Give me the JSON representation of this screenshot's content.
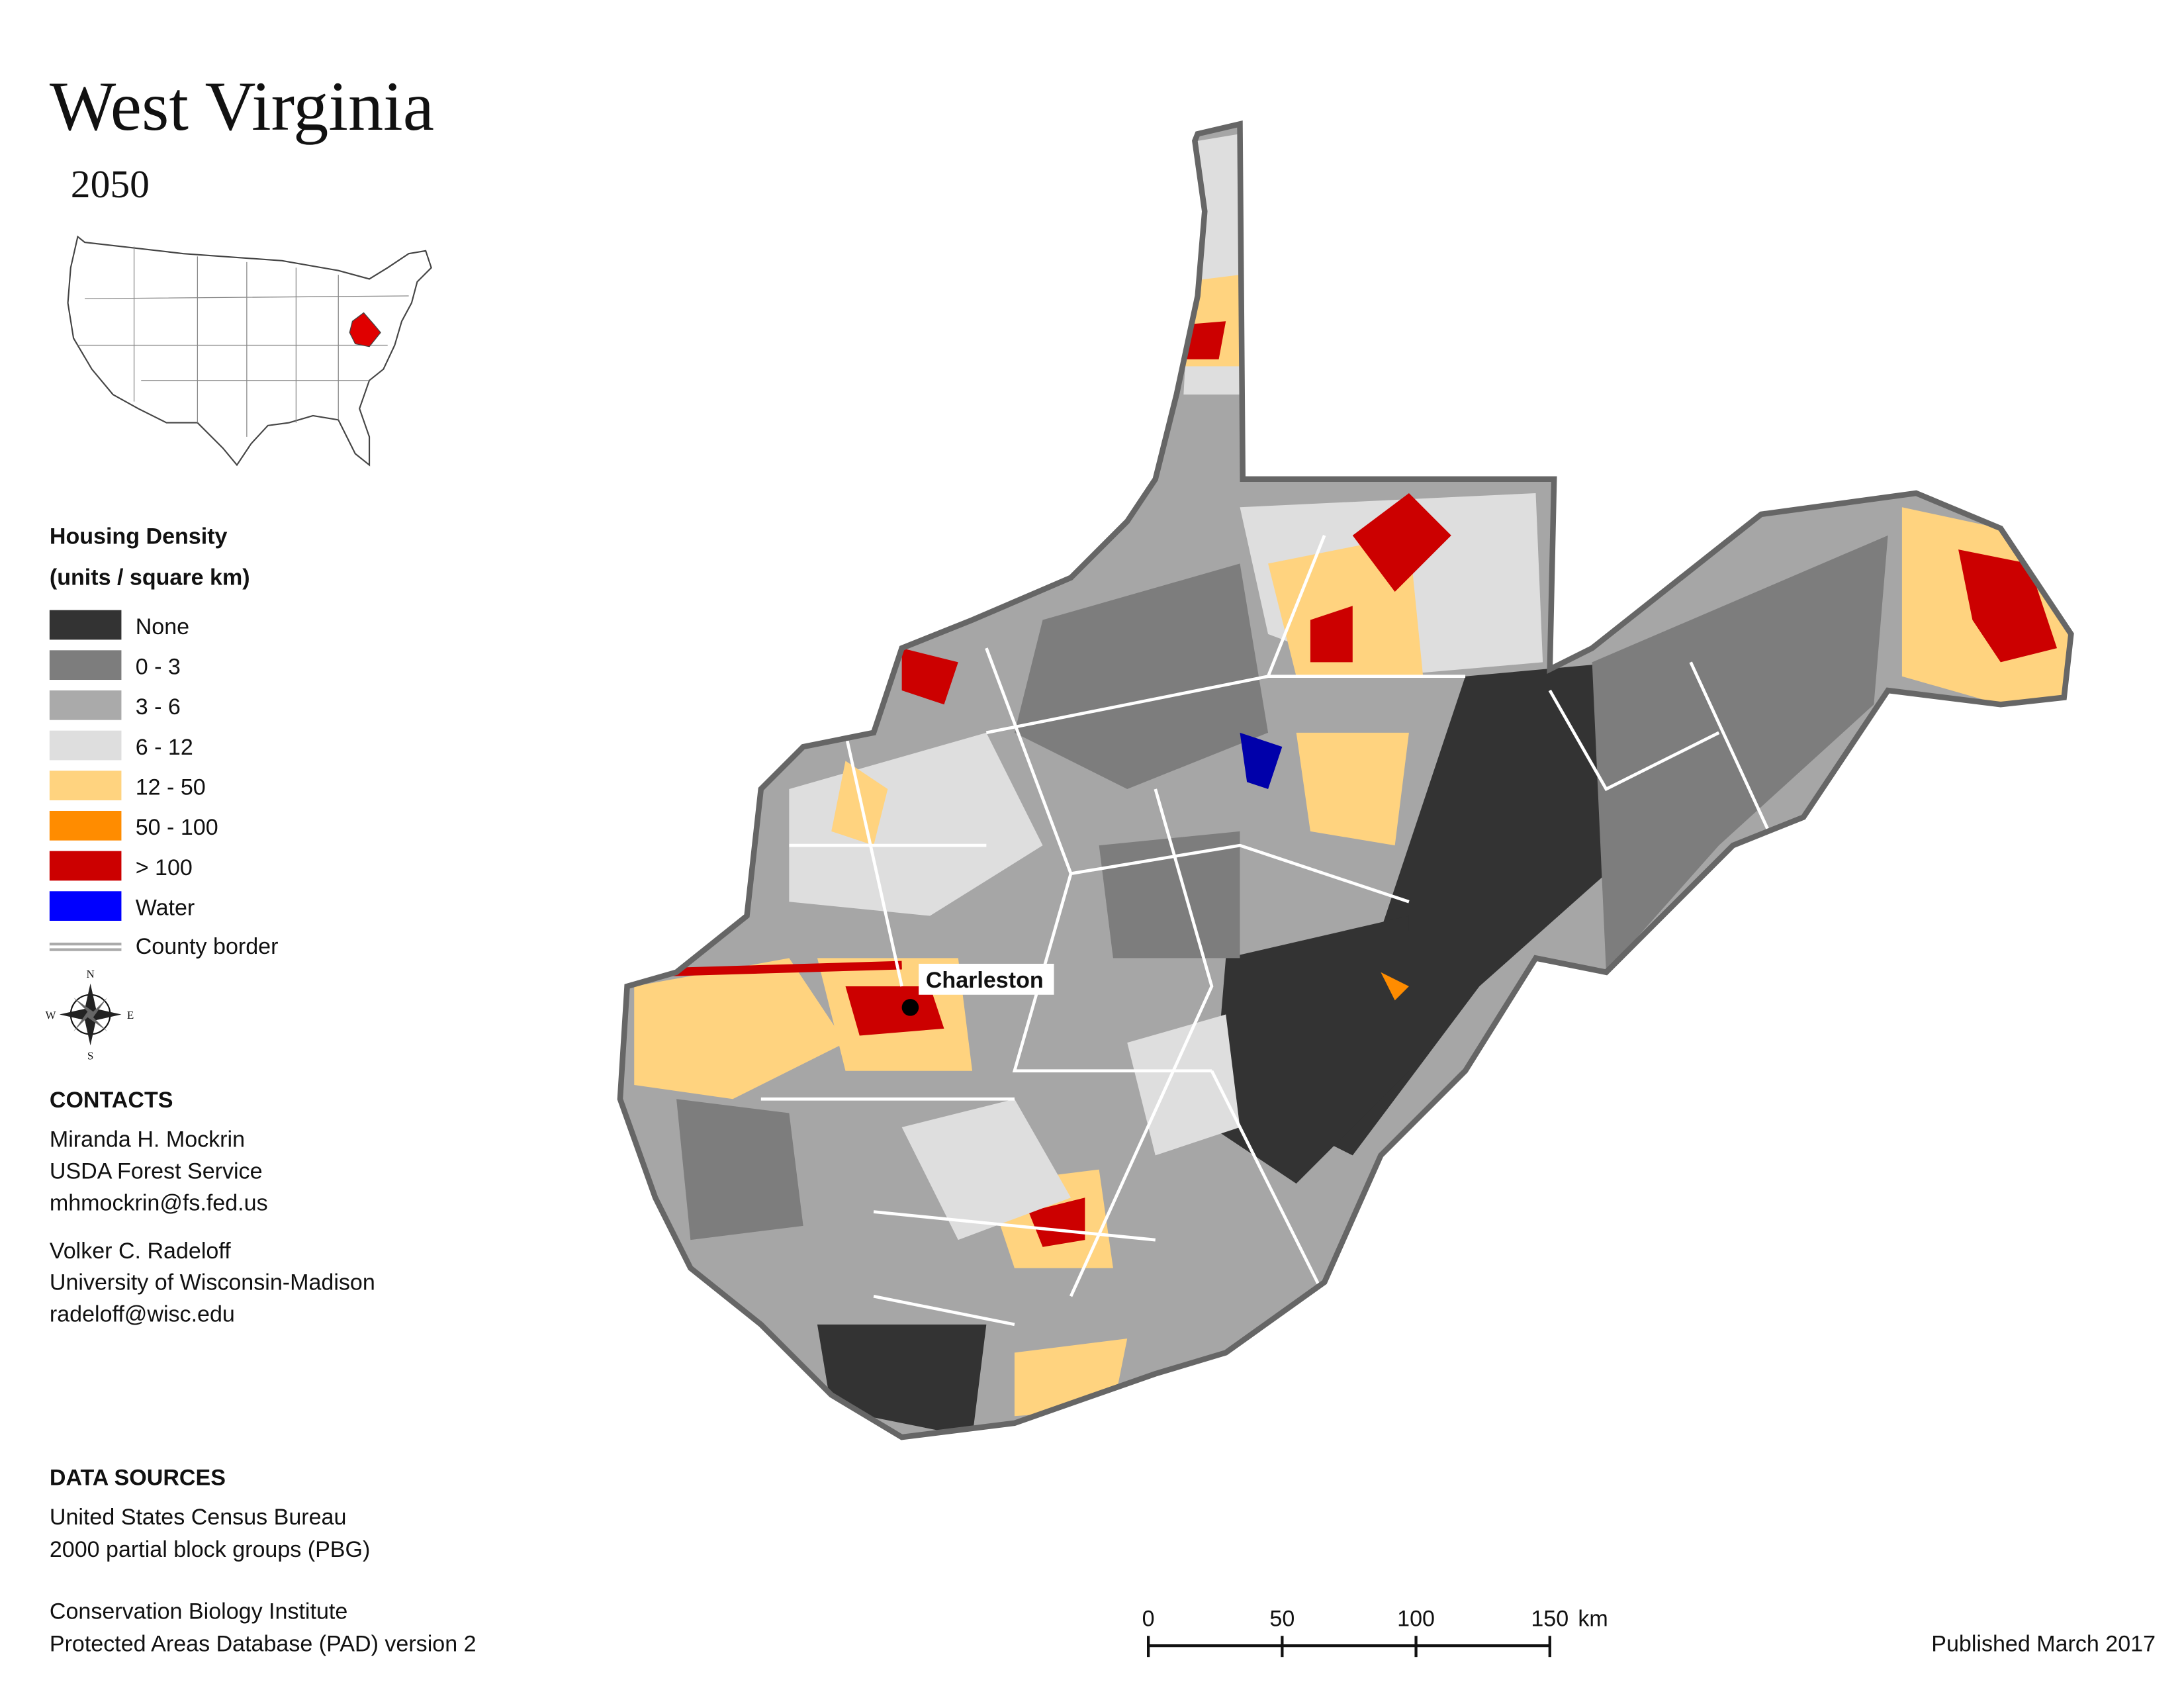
{
  "header": {
    "title": "West Virginia",
    "subtitle": "2050"
  },
  "legend": {
    "title_line1": "Housing Density",
    "title_line2": "(units / square km)",
    "items": [
      {
        "label": "None",
        "color": "#333333"
      },
      {
        "label": "0 - 3",
        "color": "#7d7d7d"
      },
      {
        "label": "3 - 6",
        "color": "#aaaaaa"
      },
      {
        "label": "6 - 12",
        "color": "#dedede"
      },
      {
        "label": "12 - 50",
        "color": "#ffd37f"
      },
      {
        "label": "50 - 100",
        "color": "#ff8c00"
      },
      {
        "label": "> 100",
        "color": "#cc0000"
      },
      {
        "label": "Water",
        "color": "#0000ff"
      }
    ],
    "border_label": "County border"
  },
  "map": {
    "city": "Charleston"
  },
  "contacts": {
    "title": "CONTACTS",
    "people": [
      {
        "name": "Miranda H. Mockrin",
        "org": "USDA Forest Service",
        "email": "mhmockrin@fs.fed.us"
      },
      {
        "name": "Volker C. Radeloff",
        "org": "University of Wisconsin-Madison",
        "email": "radeloff@wisc.edu"
      }
    ]
  },
  "data_sources": {
    "title": "DATA SOURCES",
    "lines": [
      "United States Census Bureau",
      "2000 partial block groups (PBG)",
      "Conservation Biology Institute",
      "Protected Areas Database (PAD) version 2"
    ]
  },
  "scale_bar": {
    "ticks": [
      0,
      50,
      100,
      150
    ],
    "unit": "km"
  },
  "footer": {
    "published": "Published March 2017"
  }
}
